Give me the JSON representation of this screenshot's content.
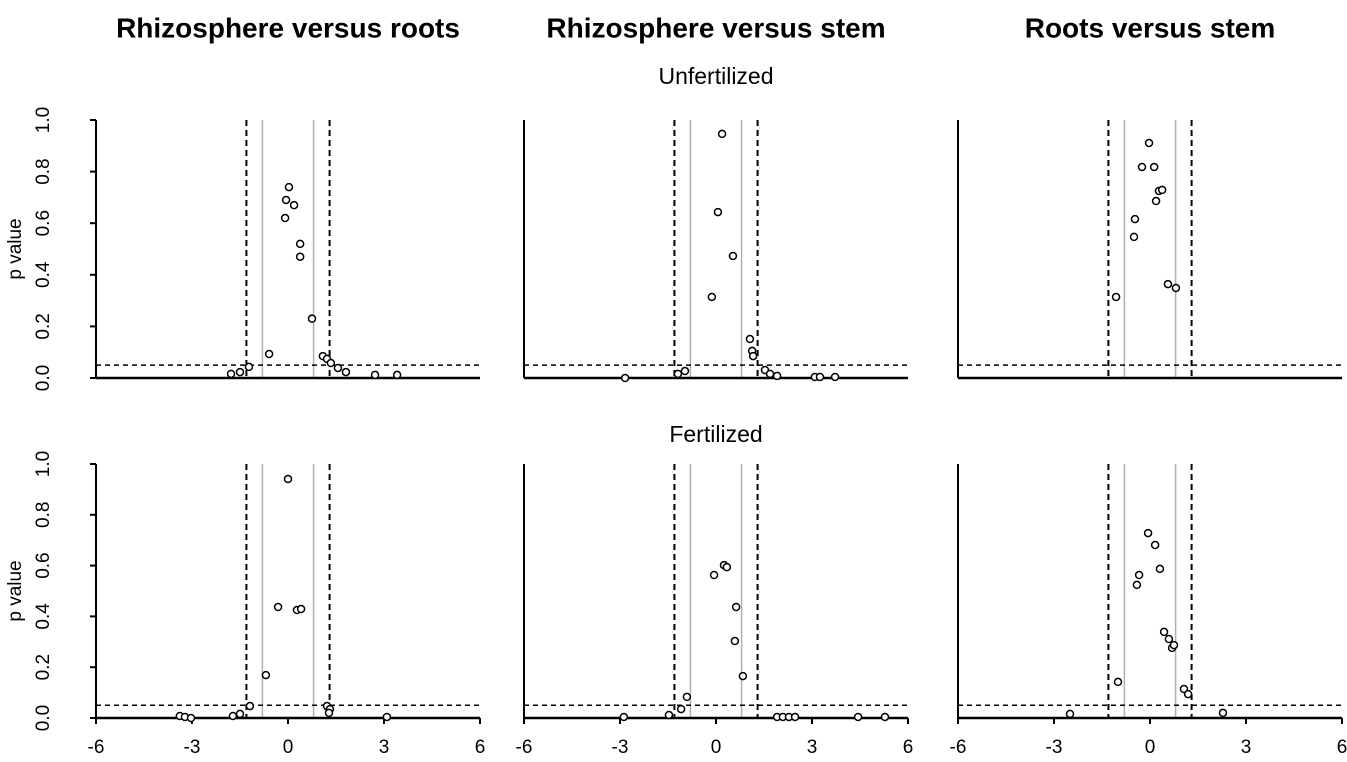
{
  "row_titles": [
    "Unfertilized",
    "Fertilized"
  ],
  "chart_data": [
    {
      "type": "scatter",
      "title": "Rhizosphere versus roots",
      "ylabel": "p value",
      "x": [
        -1.78,
        -1.5,
        -1.22,
        -0.59,
        0.03,
        -0.06,
        0.19,
        -0.09,
        0.38,
        0.38,
        0.75,
        1.09,
        1.22,
        1.34,
        1.56,
        1.81,
        2.72,
        3.41
      ],
      "values": [
        0.016,
        0.023,
        0.043,
        0.093,
        0.74,
        0.69,
        0.67,
        0.62,
        0.52,
        0.47,
        0.23,
        0.085,
        0.074,
        0.058,
        0.039,
        0.023,
        0.012,
        0.012
      ],
      "color": "#000000",
      "xlim": [
        -6,
        6
      ],
      "ylim": [
        0,
        1
      ],
      "yticks": [
        {
          "value": 0,
          "label": "0.0"
        },
        {
          "value": 0.2,
          "label": "0.2"
        },
        {
          "value": 0.4,
          "label": "0.4"
        },
        {
          "value": 0.6,
          "label": "0.6"
        },
        {
          "value": 0.8,
          "label": "0.8"
        },
        {
          "value": 1,
          "label": "1.0"
        }
      ],
      "fold_change_lines": [
        -1.3,
        1.3
      ],
      "inner_lines": [
        -0.8,
        0.8
      ],
      "p_threshold": 0.05
    },
    {
      "type": "scatter",
      "title": "Rhizosphere versus stem",
      "x": [
        -2.84,
        -1.19,
        -0.97,
        0.19,
        0.06,
        0.53,
        -0.13,
        1.06,
        1.13,
        1.16,
        1.53,
        1.69,
        1.91,
        3.09,
        3.25,
        3.72
      ],
      "values": [
        0.0,
        0.016,
        0.027,
        0.946,
        0.643,
        0.473,
        0.314,
        0.151,
        0.105,
        0.085,
        0.031,
        0.016,
        0.008,
        0.004,
        0.004,
        0.004
      ],
      "color": "#000000",
      "xlim": [
        -6,
        6
      ],
      "ylim": [
        0,
        1
      ],
      "fold_change_lines": [
        -1.3,
        1.3
      ],
      "inner_lines": [
        -0.8,
        0.8
      ],
      "p_threshold": 0.05
    },
    {
      "type": "scatter",
      "title": "Roots versus stem",
      "x": [
        -1.06,
        -0.47,
        -0.5,
        -0.25,
        -0.03,
        0.13,
        0.19,
        0.28,
        0.38,
        0.56,
        0.81
      ],
      "values": [
        0.314,
        0.616,
        0.547,
        0.818,
        0.911,
        0.818,
        0.686,
        0.725,
        0.729,
        0.364,
        0.349
      ],
      "color": "#000000",
      "xlim": [
        -6,
        6
      ],
      "ylim": [
        0,
        1
      ],
      "fold_change_lines": [
        -1.3,
        1.3
      ],
      "inner_lines": [
        -0.8,
        0.8
      ],
      "p_threshold": 0.05
    },
    {
      "type": "scatter",
      "ylabel": "p value",
      "x": [
        -3.38,
        -3.22,
        -3.03,
        -1.72,
        -1.5,
        -1.19,
        0,
        -0.31,
        0.28,
        0.41,
        -0.69,
        1.22,
        1.31,
        1.28,
        3.09
      ],
      "values": [
        0.008,
        0.004,
        0,
        0.008,
        0.016,
        0.047,
        0.941,
        0.437,
        0.425,
        0.429,
        0.169,
        0.047,
        0.035,
        0.02,
        0.004
      ],
      "color": "#000000",
      "xlim": [
        -6,
        6
      ],
      "ylim": [
        0,
        1
      ],
      "xticks": [
        -6,
        -3,
        0,
        3,
        6
      ],
      "yticks": [
        {
          "value": 0,
          "label": "0.0"
        },
        {
          "value": 0.2,
          "label": "0.2"
        },
        {
          "value": 0.4,
          "label": "0.4"
        },
        {
          "value": 0.6,
          "label": "0.6"
        },
        {
          "value": 0.8,
          "label": "0.8"
        },
        {
          "value": 1,
          "label": "1.0"
        }
      ],
      "fold_change_lines": [
        -1.3,
        1.3
      ],
      "inner_lines": [
        -0.8,
        0.8
      ],
      "p_threshold": 0.05
    },
    {
      "type": "scatter",
      "x": [
        -2.88,
        -1.47,
        -1.09,
        -0.91,
        -0.06,
        0.25,
        0.34,
        0.63,
        0.59,
        0.84,
        1.91,
        2.09,
        2.28,
        2.47,
        4.44,
        5.28
      ],
      "values": [
        0.004,
        0.012,
        0.035,
        0.083,
        0.563,
        0.602,
        0.594,
        0.437,
        0.303,
        0.165,
        0.004,
        0.004,
        0.004,
        0.004,
        0.004,
        0.004
      ],
      "color": "#000000",
      "xlim": [
        -6,
        6
      ],
      "ylim": [
        0,
        1
      ],
      "xticks": [
        -6,
        -3,
        0,
        3,
        6
      ],
      "fold_change_lines": [
        -1.3,
        1.3
      ],
      "inner_lines": [
        -0.8,
        0.8
      ],
      "p_threshold": 0.05
    },
    {
      "type": "scatter",
      "x": [
        -2.5,
        -1.0,
        -0.34,
        -0.41,
        -0.06,
        0.16,
        0.31,
        0.44,
        0.59,
        0.69,
        0.75,
        1.06,
        1.19,
        2.28
      ],
      "values": [
        0.016,
        0.142,
        0.563,
        0.524,
        0.728,
        0.681,
        0.587,
        0.339,
        0.311,
        0.276,
        0.287,
        0.114,
        0.094,
        0.02
      ],
      "color": "#000000",
      "xlim": [
        -6,
        6
      ],
      "ylim": [
        0,
        1
      ],
      "xticks": [
        -6,
        -3,
        0,
        3,
        6
      ],
      "fold_change_lines": [
        -1.3,
        1.3
      ],
      "inner_lines": [
        -0.8,
        0.8
      ],
      "p_threshold": 0.05
    }
  ]
}
